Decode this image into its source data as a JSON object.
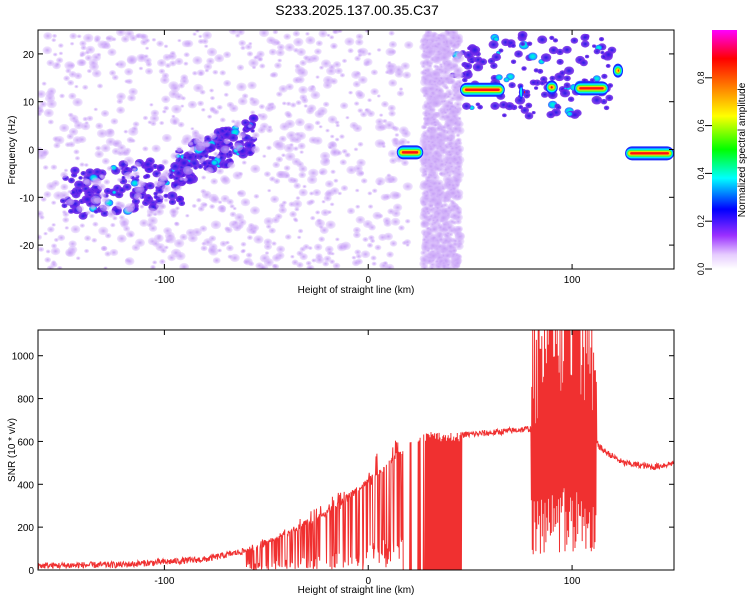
{
  "page_title": "S233.2025.137.00.35.C37",
  "colors": {
    "snr_line": "#f03030",
    "scatter_dots": "#b98cf0",
    "scatter_dots_dark": "#5a1ad8",
    "frame": "#000000"
  },
  "chart_data": [
    {
      "type": "heatmap",
      "title": "S233.2025.137.00.35.C37",
      "xlabel": "Height of straight line (km)",
      "ylabel": "Frequency (Hz)",
      "xlim": [
        -162,
        150
      ],
      "ylim": [
        -25,
        25
      ],
      "x_ticks": [
        -100,
        0,
        100
      ],
      "y_ticks": [
        -20,
        -10,
        0,
        10,
        20
      ],
      "colorbar": {
        "label": "Normalized spectral amplitude",
        "range": [
          0,
          1
        ],
        "ticks": [
          "0.0",
          "0.2",
          "0.4",
          "0.6",
          "0.8"
        ],
        "colormap": [
          "#ffffff",
          "#e6ccff",
          "#9b30ff",
          "#0000ff",
          "#00ffff",
          "#00ff00",
          "#ffff00",
          "#ff8000",
          "#ff0000",
          "#ff00ff"
        ]
      },
      "line_features": [
        {
          "x_range": [
            14,
            27
          ],
          "freq": -0.6,
          "amplitude": 1.0
        },
        {
          "x_range": [
            45,
            67
          ],
          "freq": 12.5,
          "amplitude": 1.0
        },
        {
          "x_range": [
            74,
            76
          ],
          "freq": 12.0,
          "amplitude": 0.9
        },
        {
          "x_range": [
            87,
            93
          ],
          "freq": 13.0,
          "amplitude": 0.8
        },
        {
          "x_range": [
            101,
            118
          ],
          "freq": 12.8,
          "amplitude": 1.0
        },
        {
          "x_range": [
            120,
            125
          ],
          "freq": 16.5,
          "amplitude": 0.9
        },
        {
          "x_range": [
            126,
            150
          ],
          "freq": -0.8,
          "amplitude": 1.0
        }
      ],
      "clusters": [
        {
          "x_range": [
            -150,
            -90
          ],
          "freq_range": [
            -13,
            -2
          ],
          "amplitude": 0.35
        },
        {
          "x_range": [
            -95,
            -55
          ],
          "freq_range": [
            -10,
            7
          ],
          "amplitude": 0.35
        },
        {
          "x_range": [
            40,
            120
          ],
          "freq_range": [
            7,
            24
          ],
          "amplitude": 0.3
        },
        {
          "x_range": [
            -162,
            20
          ],
          "freq_range": [
            -25,
            25
          ],
          "amplitude": 0.08
        },
        {
          "x_range": [
            27,
            45
          ],
          "freq_range": [
            -25,
            25
          ],
          "amplitude": 0.1
        }
      ]
    },
    {
      "type": "line",
      "xlabel": "Height of straight line (km)",
      "ylabel": "SNR (10 * v/v)",
      "xlim": [
        -162,
        150
      ],
      "ylim": [
        0,
        1120
      ],
      "x_ticks": [
        -100,
        0,
        100
      ],
      "y_ticks": [
        0,
        200,
        400,
        600,
        800,
        1000
      ],
      "series": [
        {
          "envelope_x": [
            -162,
            -120,
            -80,
            -60,
            -45,
            -30,
            -20,
            -10,
            0,
            10,
            17,
            20,
            30,
            36,
            40,
            45,
            60,
            80,
            90,
            100,
            108,
            115,
            125,
            140,
            150
          ],
          "envelope_y": [
            20,
            25,
            50,
            90,
            150,
            220,
            270,
            340,
            420,
            500,
            560,
            590,
            630,
            620,
            630,
            630,
            640,
            660,
            760,
            820,
            640,
            560,
            500,
            480,
            500
          ],
          "dropout_x_ranges": [
            [
              17,
              35
            ],
            [
              45,
              46
            ]
          ],
          "spike_x_ranges": [
            [
              -60,
              17
            ],
            [
              35,
              45
            ],
            [
              80,
              112
            ]
          ],
          "spike_max": [
            380,
            640,
            1120
          ]
        }
      ]
    }
  ]
}
